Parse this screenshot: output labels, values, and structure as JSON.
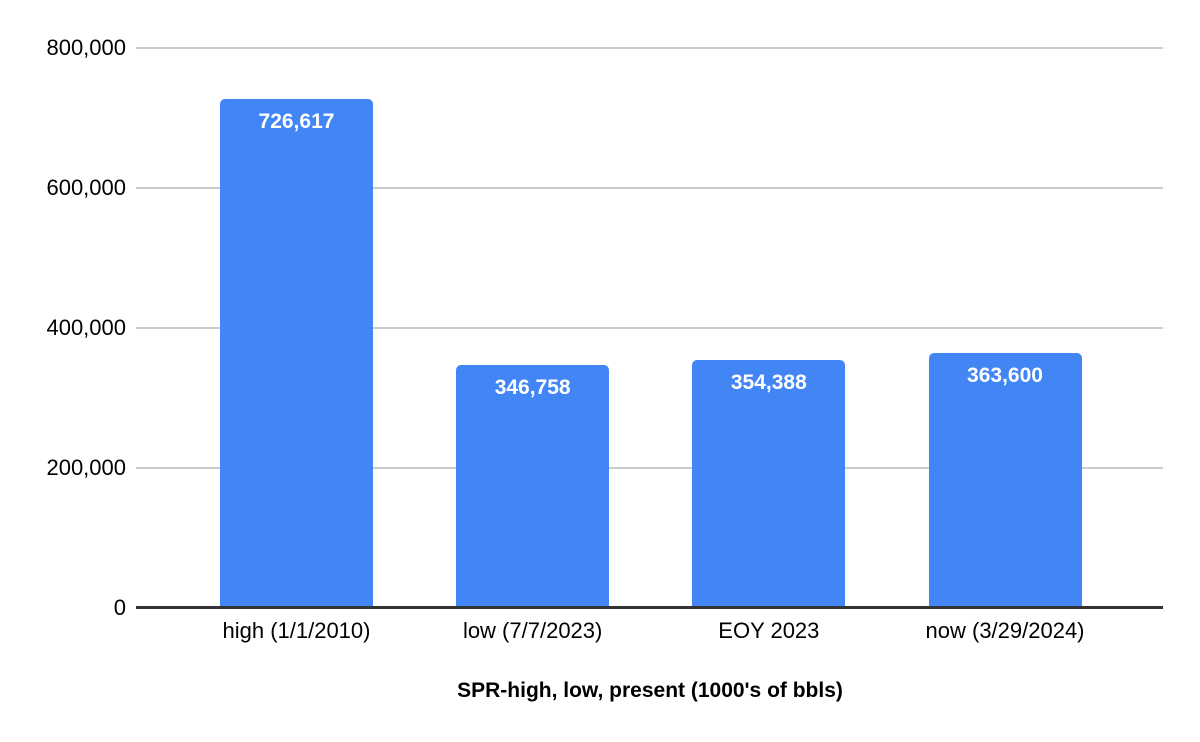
{
  "chart_data": {
    "type": "bar",
    "title": "SPR-high, low, present (1000's of bbls)",
    "xlabel": "",
    "ylabel": "",
    "categories": [
      "high (1/1/2010)",
      "low (7/7/2023)",
      "EOY 2023",
      "now (3/29/2024)"
    ],
    "values": [
      726617,
      346758,
      354388,
      363600
    ],
    "bar_labels": [
      "726,617",
      "346,758",
      "354,388",
      "363,600"
    ],
    "ylim": [
      0,
      800000
    ],
    "yticks": [
      {
        "value": 0,
        "label": "0"
      },
      {
        "value": 200000,
        "label": "200,000"
      },
      {
        "value": 400000,
        "label": "400,000"
      },
      {
        "value": 600000,
        "label": "600,000"
      },
      {
        "value": 800000,
        "label": "800,000"
      }
    ],
    "grid": true,
    "legend": "none",
    "colors": {
      "bar": "#4285f4",
      "bar_label": "#ffffff",
      "gridline": "#cccccc",
      "axis_line": "#333333",
      "tick_text": "#000000",
      "title_text": "#000000",
      "background": "#ffffff"
    }
  }
}
